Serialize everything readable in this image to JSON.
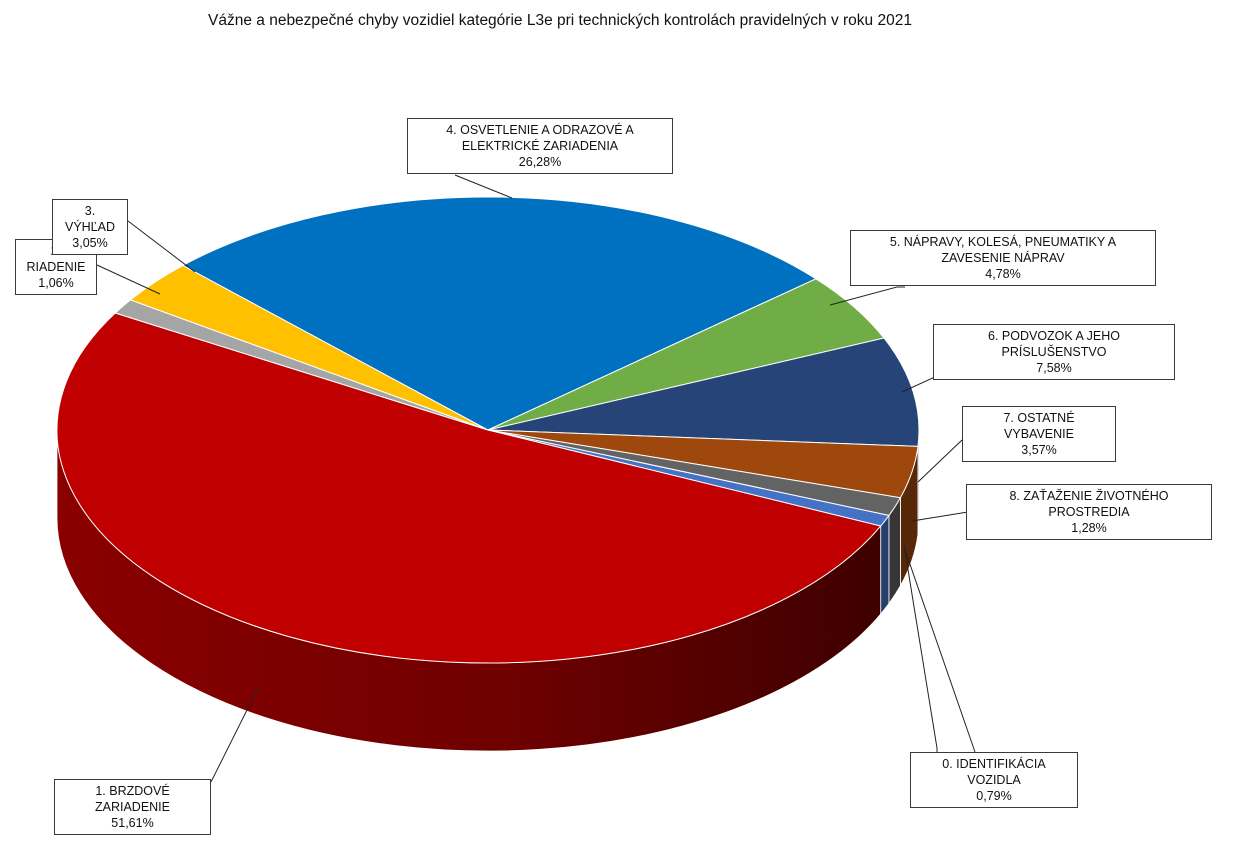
{
  "chart_data": {
    "type": "pie",
    "style": "3d",
    "title": "Vážne a nebezpečné chyby vozidiel kategórie L3e pri technických kontrolách pravidelných v roku 2021",
    "slices": [
      {
        "key": "s0",
        "label": "0. IDENTIFIKÁCIA VOZIDLA",
        "value_text": "0,79%",
        "value": 0.79,
        "color": "#4472C4"
      },
      {
        "key": "s1",
        "label": "1. BRZDOVÉ ZARIADENIE",
        "value_text": "51,61%",
        "value": 51.61,
        "color": "#C00000"
      },
      {
        "key": "s2",
        "label": "2. RIADENIE",
        "value_text": "1,06%",
        "value": 1.06,
        "color": "#A5A5A5"
      },
      {
        "key": "s3",
        "label": "3. VÝHĽAD",
        "value_text": "3,05%",
        "value": 3.05,
        "color": "#FFC000"
      },
      {
        "key": "s4",
        "label": "4. OSVETLENIE A ODRAZOVÉ A ELEKTRICKÉ ZARIADENIA",
        "value_text": "26,28%",
        "value": 26.28,
        "color": "#0070C0"
      },
      {
        "key": "s5",
        "label": "5. NÁPRAVY, KOLESÁ, PNEUMATIKY A ZAVESENIE NÁPRAV",
        "value_text": "4,78%",
        "value": 4.78,
        "color": "#70AD47"
      },
      {
        "key": "s6",
        "label": "6. PODVOZOK A JEHO PRÍSLUŠENSTVO",
        "value_text": "7,58%",
        "value": 7.58,
        "color": "#264478"
      },
      {
        "key": "s7",
        "label": "7. OSTATNÉ VYBAVENIE",
        "value_text": "3,57%",
        "value": 3.57,
        "color": "#9E480E"
      },
      {
        "key": "s8",
        "label": "8. ZAŤAŽENIE ŽIVOTNÉHO PROSTREDIA",
        "value_text": "1,28%",
        "value": 1.28,
        "color": "#636363"
      }
    ],
    "legend": "none"
  }
}
